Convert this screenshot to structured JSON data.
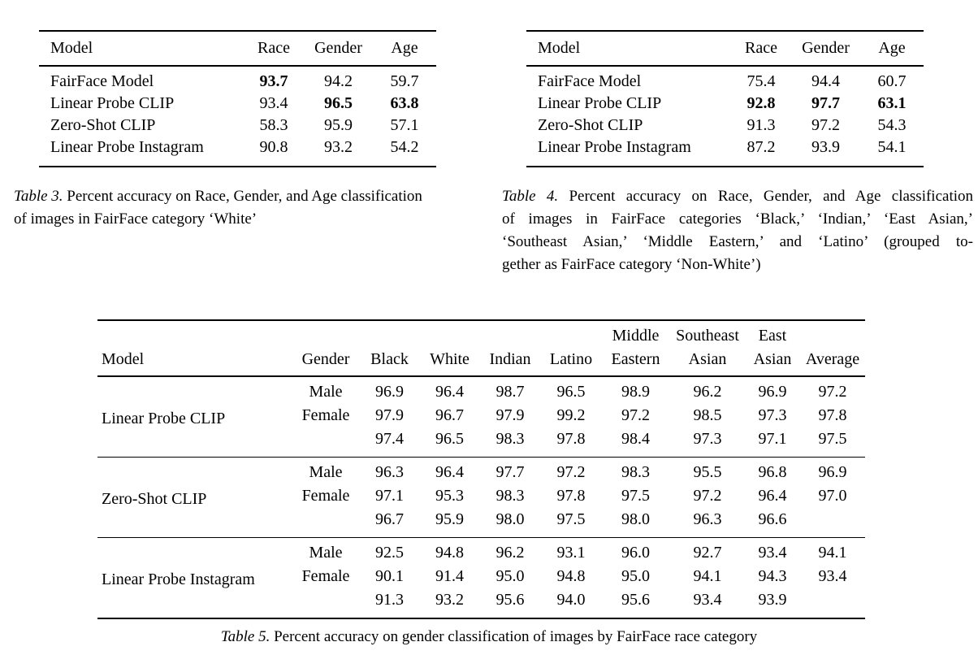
{
  "table3": {
    "headers": [
      "Model",
      "Race",
      "Gender",
      "Age"
    ],
    "rows": [
      {
        "model": "FairFace Model",
        "values": [
          "93.7",
          "94.2",
          "59.7"
        ]
      },
      {
        "model": "Linear Probe CLIP",
        "values": [
          "93.4",
          "96.5",
          "63.8"
        ]
      },
      {
        "model": "Zero-Shot CLIP",
        "values": [
          "58.3",
          "95.9",
          "57.1"
        ]
      },
      {
        "model": "Linear Probe Instagram",
        "values": [
          "90.8",
          "93.2",
          "54.2"
        ]
      }
    ],
    "caption_label": "Table 3.",
    "caption_line1_rest": "Percent accuracy on Race, Gender, and Age classification",
    "caption_line2": "of images in FairFace category ‘White’"
  },
  "table4": {
    "headers": [
      "Model",
      "Race",
      "Gender",
      "Age"
    ],
    "rows": [
      {
        "model": "FairFace Model",
        "values": [
          "75.4",
          "94.4",
          "60.7"
        ]
      },
      {
        "model": "Linear Probe CLIP",
        "values": [
          "92.8",
          "97.7",
          "63.1"
        ]
      },
      {
        "model": "Zero-Shot CLIP",
        "values": [
          "91.3",
          "97.2",
          "54.3"
        ]
      },
      {
        "model": "Linear Probe Instagram",
        "values": [
          "87.2",
          "93.9",
          "54.1"
        ]
      }
    ],
    "caption_label": "Table 4.",
    "caption_line1_rest": "Percent accuracy on Race, Gender, and Age classification",
    "caption_line2": "of images in FairFace categories ‘Black,’ ‘Indian,’ ‘East Asian,’",
    "caption_line3": "‘Southeast Asian,’ ‘Middle Eastern,’ and ‘Latino’ (grouped to-",
    "caption_line4": "gether as FairFace category ‘Non-White’)"
  },
  "table5": {
    "headers": [
      "Model",
      "Gender",
      "Black",
      "White",
      "Indian",
      "Latino",
      "Middle Eastern",
      "Southeast Asian",
      "East Asian",
      "Average"
    ],
    "groups": [
      {
        "model": "Linear Probe CLIP",
        "rows": [
          {
            "gender": "Male",
            "values": [
              "96.9",
              "96.4",
              "98.7",
              "96.5",
              "98.9",
              "96.2",
              "96.9",
              "97.2"
            ]
          },
          {
            "gender": "Female",
            "values": [
              "97.9",
              "96.7",
              "97.9",
              "99.2",
              "97.2",
              "98.5",
              "97.3",
              "97.8"
            ]
          },
          {
            "gender": "",
            "values": [
              "97.4",
              "96.5",
              "98.3",
              "97.8",
              "98.4",
              "97.3",
              "97.1",
              "97.5"
            ]
          }
        ]
      },
      {
        "model": "Zero-Shot CLIP",
        "rows": [
          {
            "gender": "Male",
            "values": [
              "96.3",
              "96.4",
              "97.7",
              "97.2",
              "98.3",
              "95.5",
              "96.8",
              "96.9"
            ]
          },
          {
            "gender": "Female",
            "values": [
              "97.1",
              "95.3",
              "98.3",
              "97.8",
              "97.5",
              "97.2",
              "96.4",
              "97.0"
            ]
          },
          {
            "gender": "",
            "values": [
              "96.7",
              "95.9",
              "98.0",
              "97.5",
              "98.0",
              "96.3",
              "96.6",
              ""
            ]
          }
        ]
      },
      {
        "model": "Linear Probe Instagram",
        "rows": [
          {
            "gender": "Male",
            "values": [
              "92.5",
              "94.8",
              "96.2",
              "93.1",
              "96.0",
              "92.7",
              "93.4",
              "94.1"
            ]
          },
          {
            "gender": "Female",
            "values": [
              "90.1",
              "91.4",
              "95.0",
              "94.8",
              "95.0",
              "94.1",
              "94.3",
              "93.4"
            ]
          },
          {
            "gender": "",
            "values": [
              "91.3",
              "93.2",
              "95.6",
              "94.0",
              "95.6",
              "93.4",
              "93.9",
              ""
            ]
          }
        ]
      }
    ],
    "caption_label": "Table 5.",
    "caption_rest": "Percent accuracy on gender classification of images by FairFace race category"
  }
}
